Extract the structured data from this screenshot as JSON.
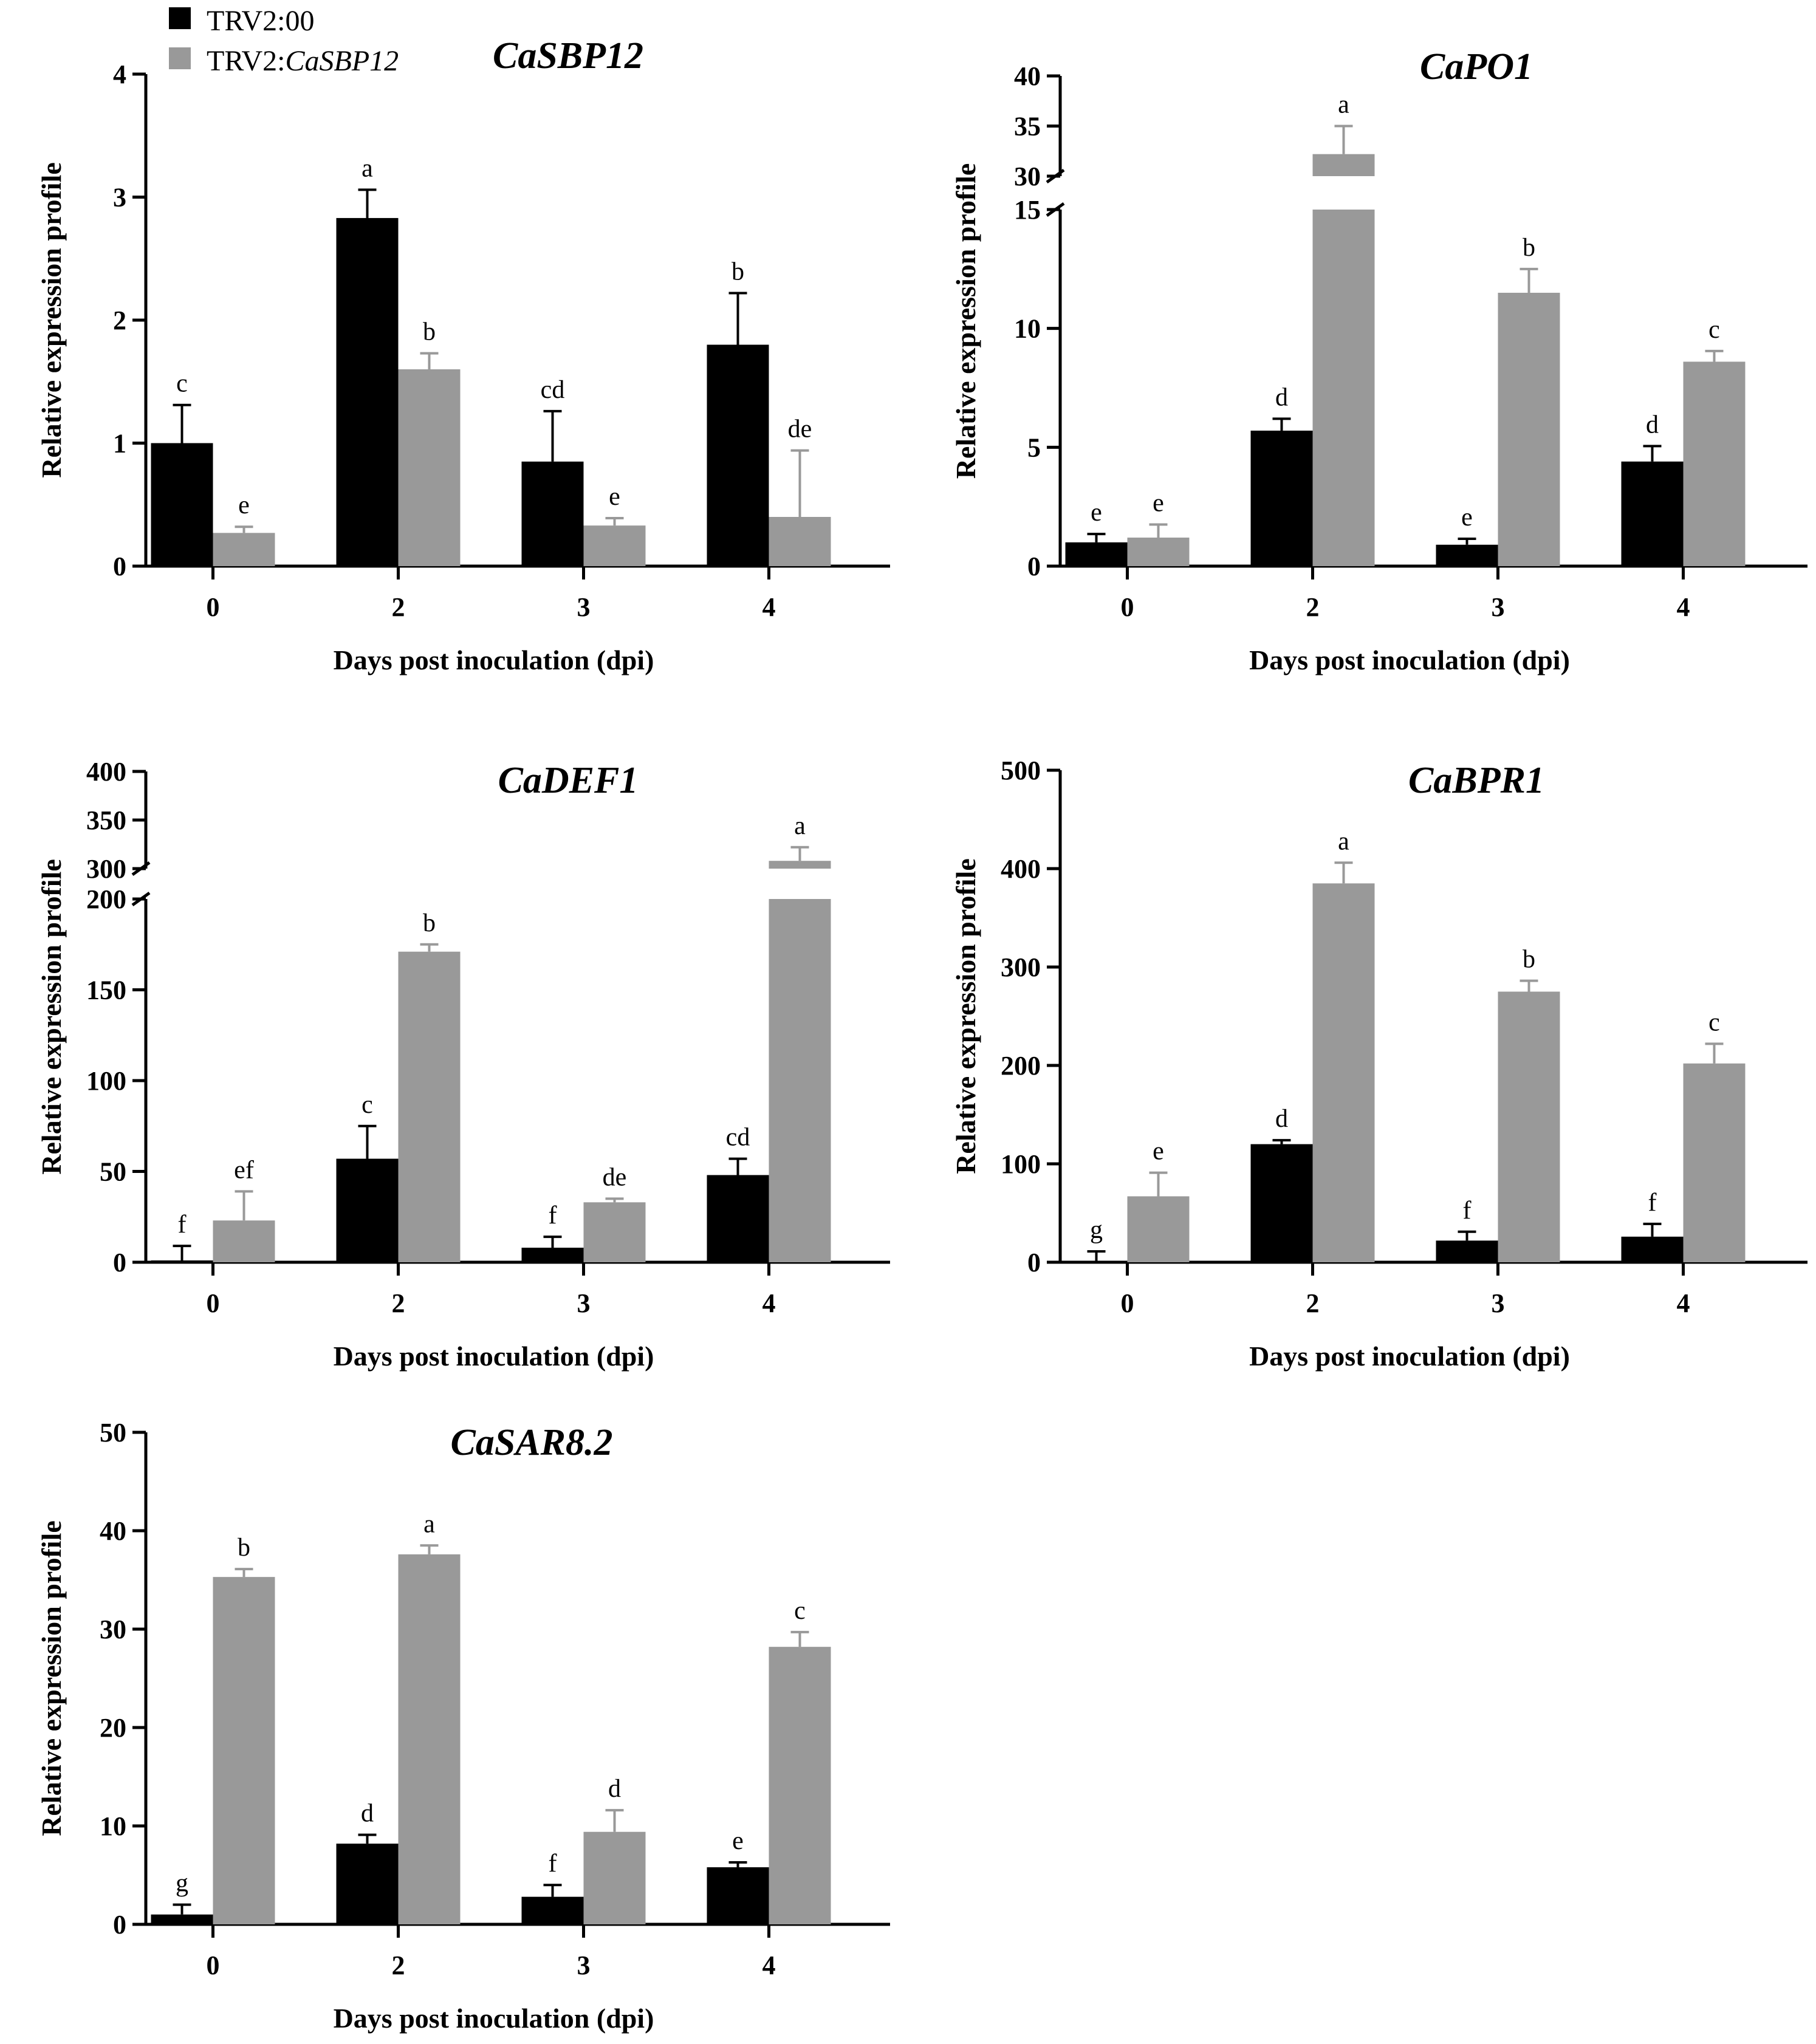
{
  "colors": {
    "control": "#000000",
    "silenced": "#999999",
    "axis": "#000000"
  },
  "legend": {
    "items": [
      {
        "prefix": "TRV2:00",
        "italic": "",
        "color": "#000000"
      },
      {
        "prefix": "TRV2:",
        "italic": "CaSBP12",
        "color": "#999999"
      }
    ]
  },
  "chart_data": [
    {
      "type": "bar",
      "title": "CaSBP12",
      "xlabel": "Days post inoculation (dpi)",
      "ylabel": "Relative expression profile",
      "categories": [
        "0",
        "2",
        "3",
        "4"
      ],
      "ylim": [
        0,
        4
      ],
      "yticks": [
        0,
        1,
        2,
        3,
        4
      ],
      "series": [
        {
          "name": "TRV2:00",
          "values": [
            1.0,
            2.83,
            0.85,
            1.8
          ],
          "errors": [
            0.31,
            0.23,
            0.41,
            0.42
          ],
          "labels": [
            "c",
            "a",
            "cd",
            "b"
          ]
        },
        {
          "name": "TRV2:CaSBP12",
          "values": [
            0.27,
            1.6,
            0.33,
            0.4
          ],
          "errors": [
            0.05,
            0.13,
            0.06,
            0.54
          ],
          "labels": [
            "e",
            "b",
            "e",
            "de"
          ]
        }
      ]
    },
    {
      "type": "bar",
      "title": "CaPO1",
      "xlabel": "Days post inoculation (dpi)",
      "ylabel": "Relative expression profile",
      "categories": [
        "0",
        "2",
        "3",
        "4"
      ],
      "ylim": [
        0,
        40
      ],
      "yaxis_break": [
        15,
        30
      ],
      "yticks": [
        0,
        5,
        10,
        15,
        30,
        35,
        40
      ],
      "series": [
        {
          "name": "TRV2:00",
          "values": [
            1.0,
            5.7,
            0.9,
            4.4
          ],
          "errors": [
            0.35,
            0.5,
            0.25,
            0.65
          ],
          "labels": [
            "e",
            "d",
            "e",
            "d"
          ]
        },
        {
          "name": "TRV2:CaSBP12",
          "values": [
            1.2,
            32.2,
            11.5,
            8.6
          ],
          "errors": [
            0.55,
            2.8,
            1.0,
            0.45
          ],
          "labels": [
            "e",
            "a",
            "b",
            "c"
          ]
        }
      ]
    },
    {
      "type": "bar",
      "title": "CaDEF1",
      "xlabel": "Days post inoculation (dpi)",
      "ylabel": "Relative expression profile",
      "categories": [
        "0",
        "2",
        "3",
        "4"
      ],
      "ylim": [
        0,
        400
      ],
      "yaxis_break": [
        200,
        300
      ],
      "yticks": [
        0,
        50,
        100,
        150,
        200,
        300,
        350,
        400
      ],
      "series": [
        {
          "name": "TRV2:00",
          "values": [
            1,
            57,
            8,
            48
          ],
          "errors": [
            8,
            18,
            6,
            9
          ],
          "labels": [
            "f",
            "c",
            "f",
            "cd"
          ]
        },
        {
          "name": "TRV2:CaSBP12",
          "values": [
            23,
            171,
            33,
            308
          ],
          "errors": [
            16,
            4,
            2,
            14
          ],
          "labels": [
            "ef",
            "b",
            "de",
            "a"
          ]
        }
      ]
    },
    {
      "type": "bar",
      "title": "CaBPR1",
      "xlabel": "Days post inoculation (dpi)",
      "ylabel": "Relative expression profile",
      "categories": [
        "0",
        "2",
        "3",
        "4"
      ],
      "ylim": [
        0,
        500
      ],
      "yticks": [
        0,
        100,
        200,
        300,
        400,
        500
      ],
      "series": [
        {
          "name": "TRV2:00",
          "values": [
            1,
            120,
            22,
            26
          ],
          "errors": [
            10,
            4,
            9,
            13
          ],
          "labels": [
            "g",
            "d",
            "f",
            "f"
          ]
        },
        {
          "name": "TRV2:CaSBP12",
          "values": [
            67,
            385,
            275,
            202
          ],
          "errors": [
            24,
            21,
            11,
            20
          ],
          "labels": [
            "e",
            "a",
            "b",
            "c"
          ]
        }
      ]
    },
    {
      "type": "bar",
      "title": "CaSAR8.2",
      "xlabel": "Days post inoculation (dpi)",
      "ylabel": "Relative expression profile",
      "categories": [
        "0",
        "2",
        "3",
        "4"
      ],
      "ylim": [
        0,
        50
      ],
      "yticks": [
        0,
        10,
        20,
        30,
        40,
        50
      ],
      "series": [
        {
          "name": "TRV2:00",
          "values": [
            1.0,
            8.2,
            2.8,
            5.8
          ],
          "errors": [
            1.0,
            0.9,
            1.2,
            0.5
          ],
          "labels": [
            "g",
            "d",
            "f",
            "e"
          ]
        },
        {
          "name": "TRV2:CaSBP12",
          "values": [
            35.3,
            37.6,
            9.4,
            28.2
          ],
          "errors": [
            0.8,
            0.9,
            2.2,
            1.5
          ],
          "labels": [
            "b",
            "a",
            "d",
            "c"
          ]
        }
      ]
    }
  ]
}
